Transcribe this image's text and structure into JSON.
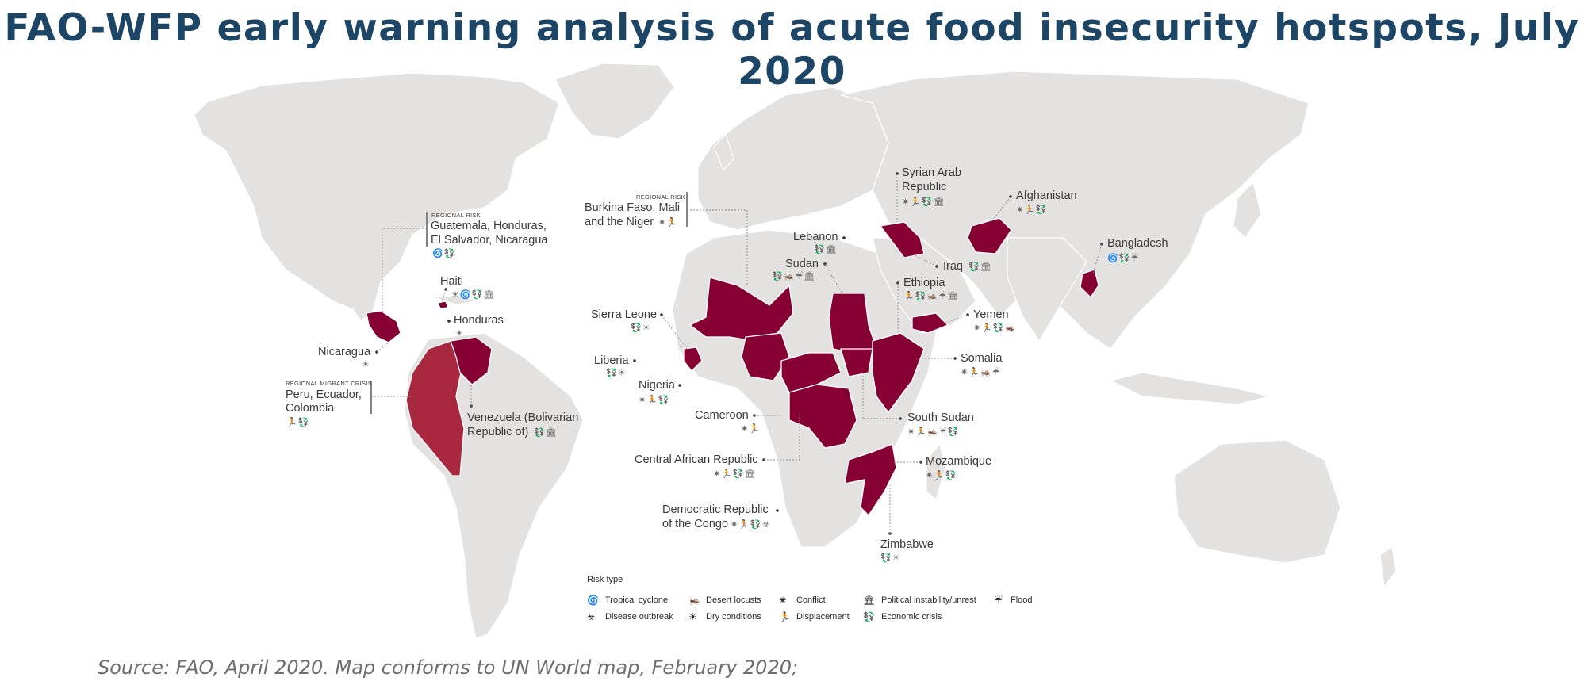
{
  "title": "FAO-WFP early warning analysis of acute food insecurity hotspots, July 2020",
  "source": "Source: FAO, April 2020. Map conforms to UN World map, February 2020;",
  "colors": {
    "hotspot": "#860033",
    "regional": "#a8283f",
    "land": "#e4e2e0",
    "title": "#1d4566"
  },
  "labels": {
    "syria_1": "Syrian Arab",
    "syria_2": "Republic",
    "afghanistan": "Afghanistan",
    "lebanon": "Lebanon",
    "iraq": "Iraq",
    "bangladesh": "Bangladesh",
    "sudan": "Sudan",
    "ethiopia": "Ethiopia",
    "yemen": "Yemen",
    "somalia": "Somalia",
    "south_sudan": "South Sudan",
    "mozambique": "Mozambique",
    "zimbabwe": "Zimbabwe",
    "drc_1": "Democratic Republic",
    "drc_2": "of the Congo",
    "car": "Central African Republic",
    "cameroon": "Cameroon",
    "nigeria": "Nigeria",
    "liberia": "Liberia",
    "sierra_leone": "Sierra Leone",
    "sahel_tag": "REGIONAL  RISK",
    "sahel_1": "Burkina Faso, Mali",
    "sahel_2": "and the Niger",
    "ca_tag": "REGIONAL RISK",
    "ca_1": "Guatemala, Honduras,",
    "ca_2": "El Salvador, Nicaragua",
    "haiti": "Haiti",
    "honduras": "Honduras",
    "nicaragua": "Nicaragua",
    "migrant_tag": "REGIONAL MIGRANT CRISIS",
    "migrant_1": "Peru, Ecuador,",
    "migrant_2": "Colombia",
    "venezuela_1": "Venezuela (Bolivarian",
    "venezuela_2": "Republic of)"
  },
  "legend": {
    "title": "Risk type",
    "items": [
      {
        "icon": "tropical-cyclone-icon",
        "glyph": "🌀",
        "label": "Tropical cyclone"
      },
      {
        "icon": "desert-locusts-icon",
        "glyph": "🦗",
        "label": "Desert locusts"
      },
      {
        "icon": "conflict-icon",
        "glyph": "✷",
        "label": "Conflict"
      },
      {
        "icon": "political-instability-icon",
        "glyph": "🏛",
        "label": "Political instability/unrest"
      },
      {
        "icon": "flood-icon",
        "glyph": "☔",
        "label": "Flood"
      },
      {
        "icon": "disease-outbreak-icon",
        "glyph": "☣",
        "label": "Disease outbreak"
      },
      {
        "icon": "dry-conditions-icon",
        "glyph": "☀",
        "label": "Dry conditions"
      },
      {
        "icon": "displacement-icon",
        "glyph": "🏃",
        "label": "Displacement"
      },
      {
        "icon": "economic-crisis-icon",
        "glyph": "💱",
        "label": "Economic crisis"
      }
    ]
  }
}
